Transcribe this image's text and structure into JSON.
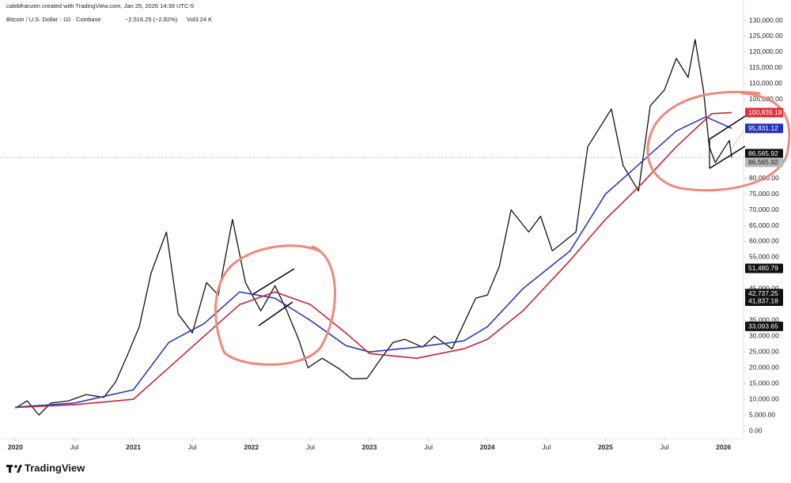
{
  "chart_data": {
    "type": "line",
    "credit": "calebfranzen created with TradingView.com, Jan 25, 2026 14:39 UTC-5",
    "title": "Bitcoin / U.S. Dollar · 1D · Coinbase",
    "change": "−2,516.25 (−2.82%)",
    "volume": "Vol3.24 K",
    "brand": "TradingView",
    "xlim": [
      2019.87,
      2026.17
    ],
    "xticks": [
      {
        "value": 2020,
        "label": "2020"
      },
      {
        "value": 2020.5,
        "label": "Jul"
      },
      {
        "value": 2021,
        "label": "2021"
      },
      {
        "value": 2021.5,
        "label": "Jul"
      },
      {
        "value": 2022,
        "label": "2022"
      },
      {
        "value": 2022.5,
        "label": "Jul"
      },
      {
        "value": 2023,
        "label": "2023"
      },
      {
        "value": 2023.5,
        "label": "Jul"
      },
      {
        "value": 2024,
        "label": "2024"
      },
      {
        "value": 2024.5,
        "label": "Jul"
      },
      {
        "value": 2025,
        "label": "2025"
      },
      {
        "value": 2025.5,
        "label": "Jul"
      },
      {
        "value": 2026,
        "label": "2026"
      }
    ],
    "ylim": [
      0,
      130000
    ],
    "yticks": [
      {
        "value": 0,
        "label": "0.00"
      },
      {
        "value": 5000,
        "label": "5,000.00"
      },
      {
        "value": 10000,
        "label": "10,000.00"
      },
      {
        "value": 15000,
        "label": "15,000.00"
      },
      {
        "value": 20000,
        "label": "20,000.00"
      },
      {
        "value": 25000,
        "label": "25,000.00"
      },
      {
        "value": 30000,
        "label": "30,000.00"
      },
      {
        "value": 35000,
        "label": "35,000.00"
      },
      {
        "value": 45000,
        "label": "45,000.00"
      },
      {
        "value": 55000,
        "label": "55,000.00"
      },
      {
        "value": 60000,
        "label": "60,000.00"
      },
      {
        "value": 65000,
        "label": "65,000.00"
      },
      {
        "value": 70000,
        "label": "70,000.00"
      },
      {
        "value": 75000,
        "label": "75,000.00"
      },
      {
        "value": 80000,
        "label": "80,000.00"
      },
      {
        "value": 105000,
        "label": "105,000.00"
      },
      {
        "value": 110000,
        "label": "110,000.00"
      },
      {
        "value": 115000,
        "label": "115,000.00"
      },
      {
        "value": 120000,
        "label": "120,000.00"
      },
      {
        "value": 125000,
        "label": "125,000.00"
      },
      {
        "value": 130000,
        "label": "130,000.00"
      }
    ],
    "series": [
      {
        "color": "#111111",
        "width": 1.3,
        "x": [
          2020.0,
          2020.1,
          2020.2,
          2020.3,
          2020.45,
          2020.6,
          2020.75,
          2020.85,
          2020.95,
          2021.05,
          2021.15,
          2021.28,
          2021.38,
          2021.5,
          2021.62,
          2021.72,
          2021.84,
          2021.95,
          2022.08,
          2022.2,
          2022.3,
          2022.4,
          2022.48,
          2022.6,
          2022.75,
          2022.85,
          2022.98,
          2023.1,
          2023.2,
          2023.3,
          2023.45,
          2023.55,
          2023.7,
          2023.8,
          2023.9,
          2024.0,
          2024.1,
          2024.2,
          2024.35,
          2024.45,
          2024.55,
          2024.65,
          2024.75,
          2024.85,
          2024.95,
          2025.05,
          2025.15,
          2025.28,
          2025.38,
          2025.5,
          2025.6,
          2025.7,
          2025.76,
          2025.83,
          2025.88,
          2025.93,
          2025.98,
          2026.05,
          2026.07
        ],
        "values": [
          7200,
          9500,
          5000,
          8800,
          9500,
          11500,
          10600,
          15500,
          24000,
          33000,
          50000,
          63000,
          37000,
          31000,
          47000,
          43000,
          67000,
          47000,
          38000,
          46000,
          38000,
          29000,
          20000,
          23000,
          19500,
          16500,
          16600,
          23000,
          28000,
          29000,
          26500,
          30000,
          26000,
          34000,
          42000,
          43000,
          52000,
          70000,
          63000,
          68000,
          57000,
          60000,
          63000,
          90000,
          96000,
          102000,
          84000,
          76000,
          103000,
          108000,
          118000,
          112000,
          124000,
          108000,
          90000,
          85000,
          88000,
          92000,
          86566
        ]
      },
      {
        "color": "#2f3ab0",
        "width": 1.6,
        "x": [
          2020.0,
          2020.5,
          2021.0,
          2021.3,
          2021.6,
          2021.9,
          2022.2,
          2022.5,
          2022.8,
          2023.0,
          2023.4,
          2023.8,
          2024.0,
          2024.3,
          2024.7,
          2025.0,
          2025.3,
          2025.6,
          2025.85,
          2026.07
        ],
        "values": [
          7500,
          8800,
          13000,
          28000,
          34000,
          44000,
          42000,
          35000,
          27000,
          25000,
          26500,
          28500,
          33000,
          45000,
          57000,
          75000,
          85000,
          95000,
          99500,
          95831
        ]
      },
      {
        "color": "#c2253b",
        "width": 1.6,
        "x": [
          2020.0,
          2020.5,
          2021.0,
          2021.3,
          2021.6,
          2021.9,
          2022.2,
          2022.5,
          2022.8,
          2023.0,
          2023.4,
          2023.8,
          2024.0,
          2024.3,
          2024.7,
          2025.0,
          2025.3,
          2025.6,
          2025.9,
          2026.07
        ],
        "values": [
          7400,
          8300,
          10000,
          20000,
          30000,
          40000,
          44000,
          40000,
          31000,
          24500,
          23000,
          26000,
          29000,
          38000,
          54000,
          67000,
          78000,
          90000,
          100500,
          100839
        ]
      }
    ],
    "price_tags": [
      {
        "value": 100839.18,
        "label": "100,839.18",
        "color": "#e0303b",
        "text_color": "#ffffff"
      },
      {
        "value": 95831.12,
        "label": "95,831.12",
        "color": "#2433b8",
        "text_color": "#ffffff"
      },
      {
        "value": 86565.92,
        "label": "86,565.92",
        "color": "#111111",
        "text_color": "#ffffff"
      },
      {
        "value": 51480.79,
        "label": "51,480.79",
        "color": "#111111",
        "text_color": "#ffffff"
      },
      {
        "value": 42737.25,
        "label": "42,737.25",
        "color": "#111111",
        "text_color": "#ffffff"
      },
      {
        "value": 41837.18,
        "label": "41,837.18",
        "color": "#111111",
        "text_color": "#ffffff"
      },
      {
        "value": 33093.65,
        "label": "33,093.65",
        "color": "#111111",
        "text_color": "#ffffff"
      }
    ],
    "last_price": {
      "value": 86565.92,
      "label": "86,565.92",
      "color": "#b8b8b8",
      "text_color": "#222222"
    }
  }
}
